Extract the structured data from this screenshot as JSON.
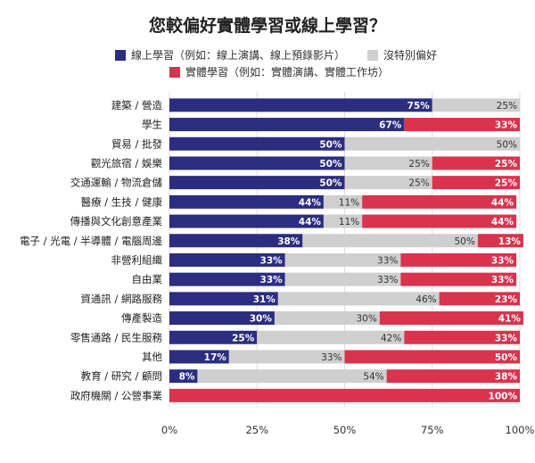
{
  "chart_data": {
    "type": "bar",
    "stacked": true,
    "orientation": "horizontal",
    "title": "您較偏好實體學習或線上學習？",
    "categories": [
      "建築 / 營造",
      "學生",
      "貿易 / 批發",
      "觀光旅宿 / 娛樂",
      "交通運輸 / 物流倉儲",
      "醫療 / 生技 / 健康",
      "傳播與文化創意產業",
      "電子 / 光電 / 半導體 / 電腦周邊",
      "非營利組織",
      "自由業",
      "資通訊 / 網路服務",
      "傳產製造",
      "零售通路 / 民生服務",
      "其他",
      "教育 / 研究 / 顧問",
      "政府機關 / 公營事業"
    ],
    "series": [
      {
        "name": "線上學習（例如：線上演講、線上預錄影片）",
        "color": "#2b2d80",
        "values": [
          75,
          67,
          50,
          50,
          50,
          44,
          44,
          38,
          33,
          33,
          31,
          30,
          25,
          17,
          8,
          0
        ],
        "labels": [
          "75%",
          "67%",
          "50%",
          "50%",
          "50%",
          "44%",
          "44%",
          "38%",
          "33%",
          "33%",
          "31%",
          "30%",
          "25%",
          "17%",
          "8%",
          ""
        ]
      },
      {
        "name": "沒特別偏好",
        "color": "#cfcfcf",
        "values": [
          25,
          0,
          50,
          25,
          25,
          11,
          11,
          50,
          33,
          33,
          46,
          30,
          42,
          33,
          54,
          0
        ],
        "labels": [
          "25%",
          "",
          "50%",
          "25%",
          "25%",
          "11%",
          "11%",
          "50%",
          "33%",
          "33%",
          "46%",
          "30%",
          "42%",
          "33%",
          "54%",
          ""
        ]
      },
      {
        "name": "實體學習（例如：實體演講、實體工作坊）",
        "color": "#d9334d",
        "values": [
          0,
          33,
          0,
          25,
          25,
          44,
          44,
          13,
          33,
          33,
          23,
          41,
          33,
          50,
          38,
          100
        ],
        "labels": [
          "",
          "33%",
          "",
          "25%",
          "25%",
          "44%",
          "44%",
          "13%",
          "33%",
          "33%",
          "23%",
          "41%",
          "33%",
          "50%",
          "38%",
          "100%"
        ]
      }
    ],
    "xlim": [
      0,
      100
    ],
    "xticks": [
      "0%",
      "25%",
      "50%",
      "75%",
      "100%"
    ],
    "grid": true,
    "legend_position": "top"
  }
}
